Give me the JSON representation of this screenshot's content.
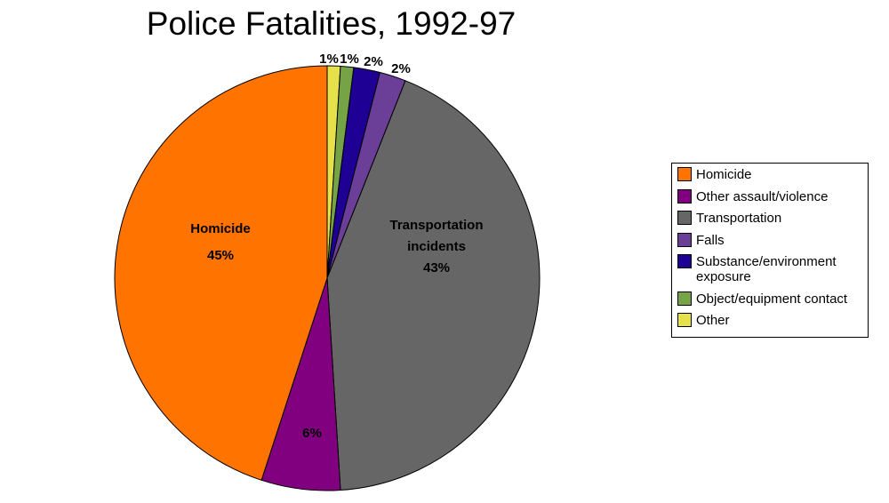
{
  "chart_data": {
    "type": "pie",
    "title": "Police Fatalities, 1992-97",
    "start_angle": "12 o'clock, clockwise",
    "slices": [
      {
        "name": "Other",
        "value": 1,
        "label": "1%",
        "color": "#e6e04a"
      },
      {
        "name": "Object/equipment contact",
        "value": 1,
        "label": "1%",
        "color": "#76a346"
      },
      {
        "name": "Substance/environment exposure",
        "value": 2,
        "label": "2%",
        "color": "#1f0094"
      },
      {
        "name": "Falls",
        "value": 2,
        "label": "2%",
        "color": "#6b3f98"
      },
      {
        "name": "Transportation",
        "value": 43,
        "label_lines": [
          "Transportation",
          "incidents",
          "43%"
        ],
        "color": "#666666"
      },
      {
        "name": "Other assault/violence",
        "value": 6,
        "label": "6%",
        "color": "#800080"
      },
      {
        "name": "Homicide",
        "value": 45,
        "label_lines": [
          "Homicide",
          "45%"
        ],
        "color": "#ff7300"
      }
    ],
    "legend": {
      "placement": "right",
      "entries": [
        {
          "label": "Homicide",
          "color": "#ff7300"
        },
        {
          "label": "Other assault/violence",
          "color": "#800080"
        },
        {
          "label": "Transportation",
          "color": "#666666"
        },
        {
          "label": "Falls",
          "color": "#6b3f98"
        },
        {
          "label": "Substance/environment exposure",
          "color": "#1f0094"
        },
        {
          "label": "Object/equipment contact",
          "color": "#76a346"
        },
        {
          "label": "Other",
          "color": "#e6e04a"
        }
      ]
    }
  }
}
